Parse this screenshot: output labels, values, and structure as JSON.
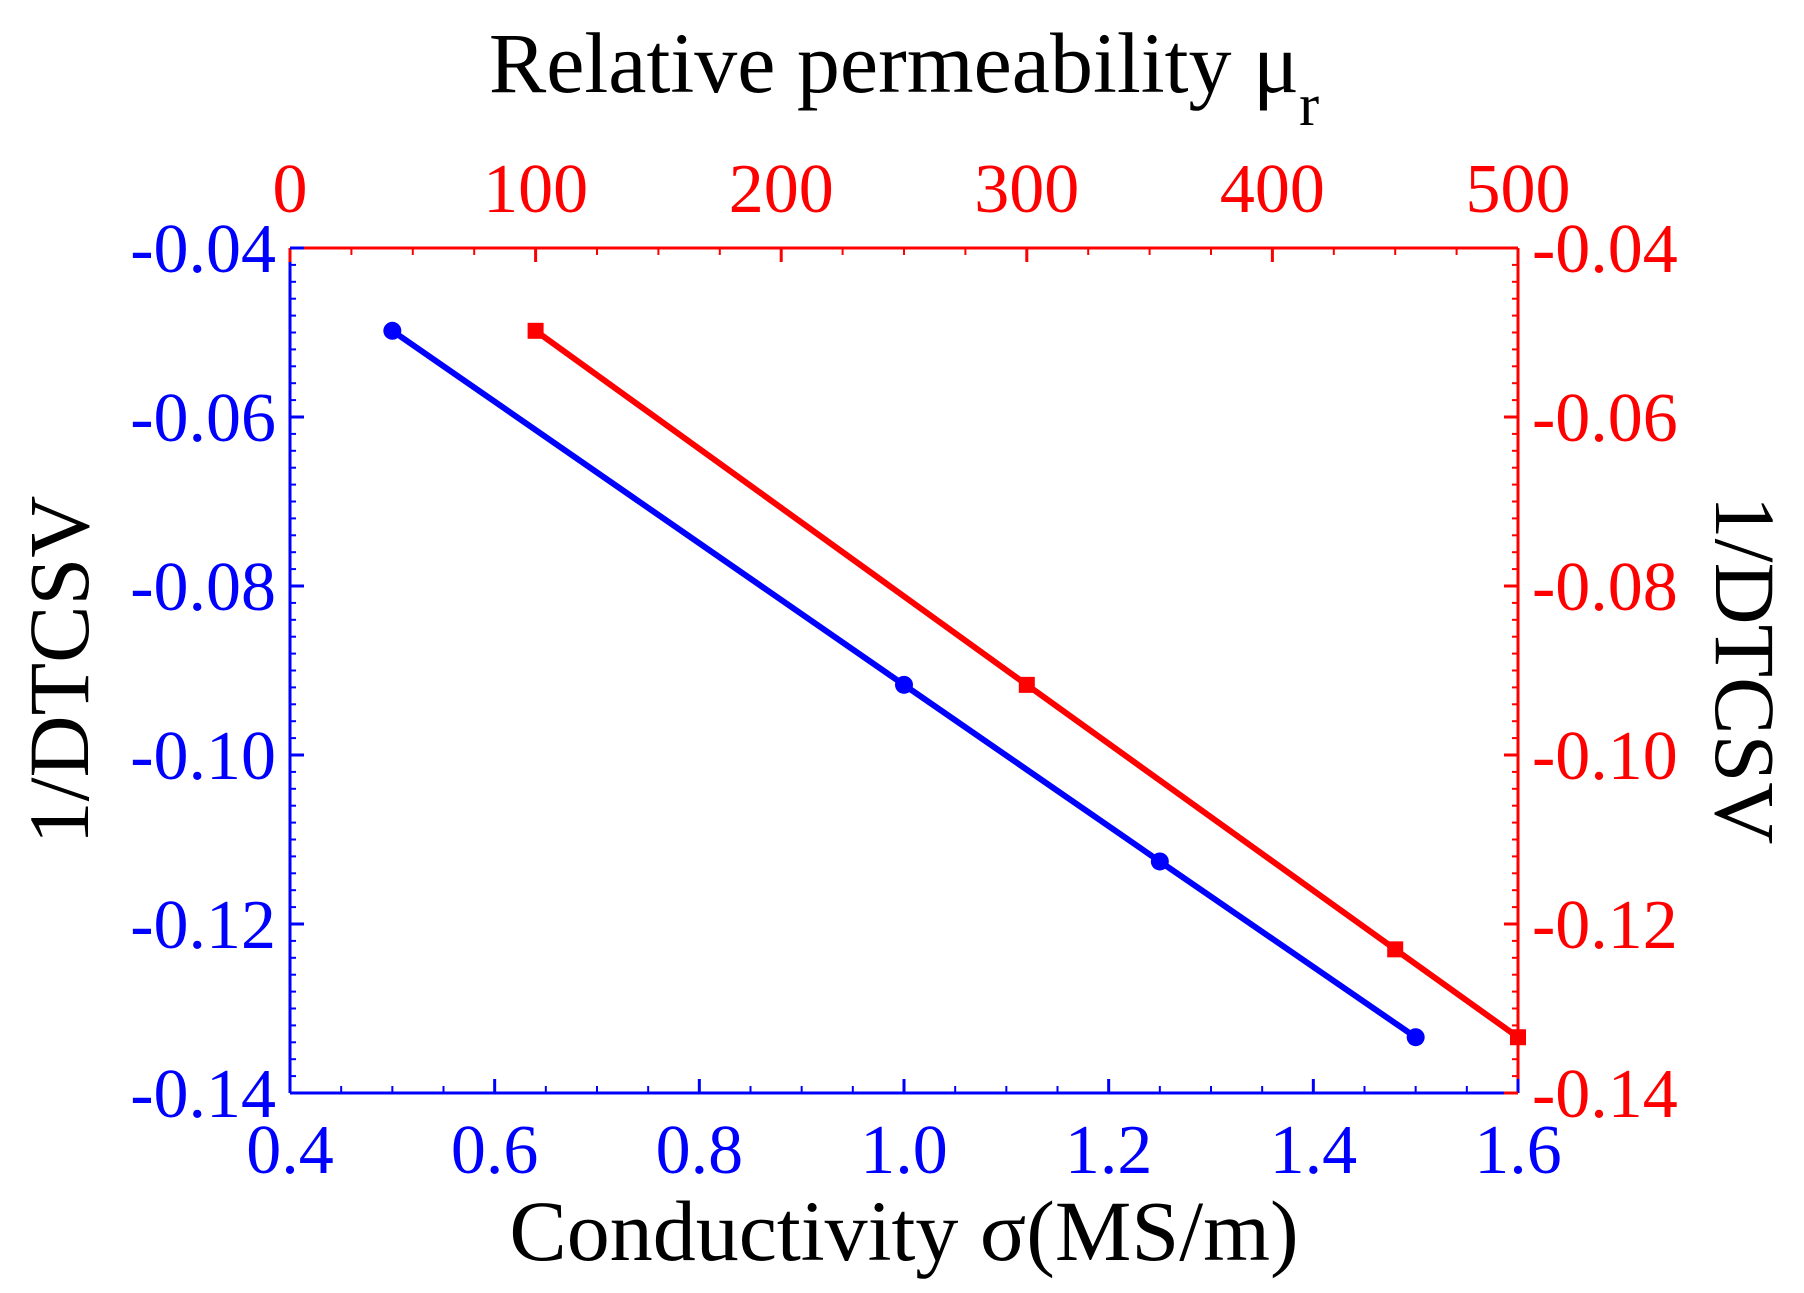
{
  "chart_data": {
    "type": "line",
    "title": "",
    "colors": {
      "conductivity": "#0000ff",
      "permeability": "#ff0000",
      "text": "#000000"
    },
    "axes": {
      "bottom": {
        "label": "Conductivity σ(MS/m)",
        "range": [
          0.4,
          1.6
        ],
        "ticks": [
          "0.4",
          "0.6",
          "0.8",
          "1.0",
          "1.2",
          "1.4",
          "1.6"
        ]
      },
      "top": {
        "label_main": "Relative permeability μ",
        "label_sub": "r",
        "range": [
          0,
          500
        ],
        "ticks": [
          "0",
          "100",
          "200",
          "300",
          "400",
          "500"
        ]
      },
      "left": {
        "label": "1/DTCSV",
        "range": [
          -0.14,
          -0.04
        ],
        "ticks": [
          "-0.04",
          "-0.06",
          "-0.08",
          "-0.10",
          "-0.12",
          "-0.14"
        ]
      },
      "right": {
        "label": "1/DTCSV",
        "range": [
          -0.14,
          -0.04
        ],
        "ticks": [
          "-0.04",
          "-0.06",
          "-0.08",
          "-0.10",
          "-0.12",
          "-0.14"
        ]
      }
    },
    "series": [
      {
        "name": "Conductivity",
        "axis_x": "bottom",
        "axis_y": "left",
        "color": "#0000ff",
        "marker": "circle",
        "x": [
          0.5,
          1.0,
          1.25,
          1.5
        ],
        "y": [
          -0.0498,
          -0.0917,
          -0.1126,
          -0.1334
        ]
      },
      {
        "name": "Relative permeability",
        "axis_x": "top",
        "axis_y": "right",
        "color": "#ff0000",
        "marker": "square",
        "x": [
          100,
          300,
          450,
          500
        ],
        "y": [
          -0.0498,
          -0.0917,
          -0.123,
          -0.1334
        ]
      }
    ]
  }
}
